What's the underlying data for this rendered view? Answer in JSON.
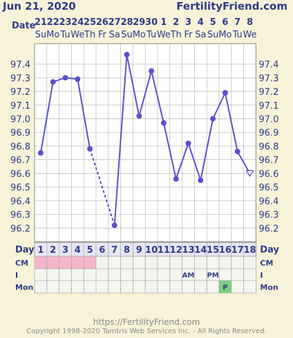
{
  "header": {
    "date": "Jun 21, 2020",
    "brand": "FertilityFriend.com"
  },
  "footer": {
    "url": "https://FertilityFriend.com",
    "copyright": "Copyright 1998-2020 Tamtris Web Services Inc. - All Rights Reserved."
  },
  "row_labels": {
    "date": "Date",
    "day": "Day",
    "cm": "CM",
    "i": "I",
    "mon": "Mon"
  },
  "chart_data": {
    "type": "line",
    "x_dates": [
      "21",
      "22",
      "23",
      "24",
      "25",
      "26",
      "27",
      "28",
      "29",
      "30",
      "1",
      "2",
      "3",
      "4",
      "5",
      "6",
      "7",
      "8"
    ],
    "x_weekdays": [
      "Su",
      "Mo",
      "Tu",
      "We",
      "Th",
      "Fr",
      "Sa",
      "Su",
      "Mo",
      "Tu",
      "We",
      "Th",
      "Fr",
      "Sa",
      "Su",
      "Mo",
      "Tu",
      "We"
    ],
    "cycle_days": [
      "1",
      "2",
      "3",
      "4",
      "5",
      "6",
      "7",
      "8",
      "9",
      "10",
      "11",
      "12",
      "13",
      "14",
      "15",
      "16",
      "17",
      "18"
    ],
    "temps": [
      96.75,
      97.27,
      97.3,
      97.29,
      96.78,
      null,
      96.22,
      97.47,
      97.02,
      97.35,
      96.97,
      96.56,
      96.82,
      96.55,
      97.0,
      97.19,
      96.76,
      96.6
    ],
    "open_points": [
      17
    ],
    "ylim": [
      96.1,
      97.55
    ],
    "yticks": [
      "96.2",
      "96.3",
      "96.4",
      "96.5",
      "96.6",
      "96.7",
      "96.8",
      "96.9",
      "97.0",
      "97.1",
      "97.2",
      "97.3",
      "97.4"
    ],
    "cm_marked_days": [
      1,
      2,
      3,
      4,
      5
    ],
    "i_labels": [
      "",
      "",
      "",
      "",
      "",
      "",
      "",
      "",
      "",
      "",
      "",
      "",
      "AM",
      "",
      "PM",
      "",
      "",
      ""
    ],
    "mon_labels": [
      "",
      "",
      "",
      "",
      "",
      "",
      "",
      "",
      "",
      "",
      "",
      "",
      "",
      "",
      "",
      "P",
      "",
      ""
    ],
    "colors": {
      "line": "#5b4fd0",
      "cm": "#f4b6c8",
      "mon_p": "#7ccf7c",
      "grid": "#b8b8b8",
      "plot_bg": "#ffffff"
    }
  }
}
